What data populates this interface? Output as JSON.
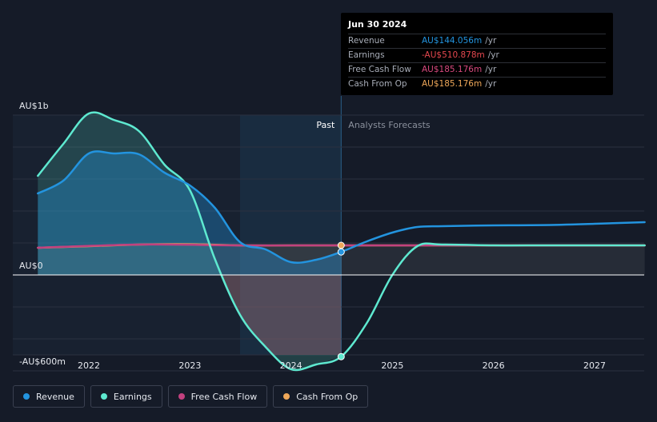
{
  "chart_data": {
    "type": "line",
    "y_axis_labels": [
      "AU$1b",
      "AU$0",
      "-AU$600m"
    ],
    "x_tick_labels": [
      "2022",
      "2023",
      "2024",
      "2025",
      "2026",
      "2027"
    ],
    "region_labels": {
      "past": "Past",
      "forecast": "Analysts Forecasts"
    },
    "ylim": [
      -600,
      1000
    ],
    "units": "AU$m",
    "grid": true,
    "legend_position": "bottom-left",
    "past_shading_range": [
      "2023-07-01",
      "2024-06-30"
    ],
    "series": [
      {
        "name": "Revenue",
        "color": "#2394df",
        "x": [
          "2021-07-01",
          "2021-10-01",
          "2022-01-01",
          "2022-04-01",
          "2022-07-01",
          "2022-10-01",
          "2023-01-01",
          "2023-04-01",
          "2023-07-01",
          "2023-10-01",
          "2024-01-01",
          "2024-04-01",
          "2024-06-30",
          "2024-10-01",
          "2025-01-01",
          "2025-04-01",
          "2025-07-01",
          "2026-01-01",
          "2026-07-01",
          "2027-01-01",
          "2027-07-01"
        ],
        "values": [
          510,
          590,
          760,
          760,
          755,
          640,
          560,
          420,
          205,
          160,
          80,
          95,
          144,
          210,
          265,
          300,
          305,
          310,
          312,
          320,
          330
        ]
      },
      {
        "name": "Earnings",
        "color": "#5ee9d0",
        "x": [
          "2021-07-01",
          "2021-10-01",
          "2022-01-01",
          "2022-04-01",
          "2022-07-01",
          "2022-10-01",
          "2023-01-01",
          "2023-04-01",
          "2023-07-01",
          "2023-10-01",
          "2024-01-01",
          "2024-04-01",
          "2024-06-30",
          "2024-10-01",
          "2025-01-01",
          "2025-04-01",
          "2025-07-01",
          "2026-01-01",
          "2026-07-01",
          "2027-01-01",
          "2027-07-01"
        ],
        "values": [
          620,
          820,
          1010,
          970,
          900,
          690,
          530,
          100,
          -250,
          -450,
          -590,
          -560,
          -511,
          -300,
          0,
          180,
          190,
          185,
          185,
          185,
          185
        ]
      },
      {
        "name": "Free Cash Flow",
        "color": "#c2417f",
        "x": [
          "2021-07-01",
          "2022-07-01",
          "2023-07-01",
          "2024-06-30",
          "2025-07-01",
          "2026-07-01",
          "2027-07-01"
        ],
        "values": [
          170,
          190,
          185,
          185,
          185,
          185,
          185
        ]
      },
      {
        "name": "Cash From Op",
        "color": "#eea759",
        "x": [
          "2021-07-01",
          "2022-01-01",
          "2022-07-01",
          "2023-01-01",
          "2023-07-01",
          "2024-01-01",
          "2024-06-30",
          "2025-01-01",
          "2025-07-01",
          "2026-01-01",
          "2026-07-01",
          "2027-01-01",
          "2027-07-01"
        ],
        "values": [
          170,
          180,
          190,
          192,
          185,
          185,
          185,
          185,
          185,
          185,
          185,
          185,
          185
        ]
      }
    ]
  },
  "tooltip": {
    "date": "Jun 30 2024",
    "rows": [
      {
        "label": "Revenue",
        "value": "AU$144.056m",
        "unit": "/yr",
        "color": "#2394df"
      },
      {
        "label": "Earnings",
        "value": "-AU$510.878m",
        "unit": "/yr",
        "color": "#e6484f"
      },
      {
        "label": "Free Cash Flow",
        "value": "AU$185.176m",
        "unit": "/yr",
        "color": "#d8497e"
      },
      {
        "label": "Cash From Op",
        "value": "AU$185.176m",
        "unit": "/yr",
        "color": "#eea759"
      }
    ]
  },
  "legend": [
    {
      "label": "Revenue",
      "color": "#2394df"
    },
    {
      "label": "Earnings",
      "color": "#5ee9d0"
    },
    {
      "label": "Free Cash Flow",
      "color": "#c2417f"
    },
    {
      "label": "Cash From Op",
      "color": "#eea759"
    }
  ]
}
